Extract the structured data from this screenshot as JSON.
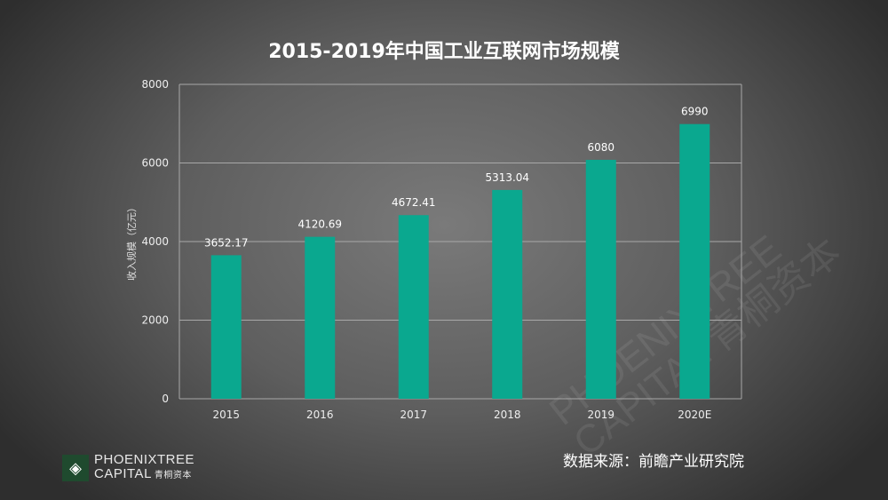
{
  "chart_data": {
    "type": "bar",
    "title": "2015-2019年中国工业互联网市场规模",
    "ylabel": "收入规模（亿元）",
    "xlabel": "",
    "categories": [
      "2015",
      "2016",
      "2017",
      "2018",
      "2019",
      "2020E"
    ],
    "values": [
      3652.17,
      4120.69,
      4672.41,
      5313.04,
      6080,
      6990
    ],
    "value_labels": [
      "3652.17",
      "4120.69",
      "4672.41",
      "5313.04",
      "6080",
      "6990"
    ],
    "ylim": [
      0,
      8000
    ],
    "yticks": [
      0,
      2000,
      4000,
      6000,
      8000
    ],
    "grid": true,
    "bar_color": "#0aa88f"
  },
  "source": "数据来源：前瞻产业研究院",
  "logo": {
    "line1": "PHOENIXTREE",
    "line2": "CAPITAL",
    "cn": "青桐资本"
  }
}
